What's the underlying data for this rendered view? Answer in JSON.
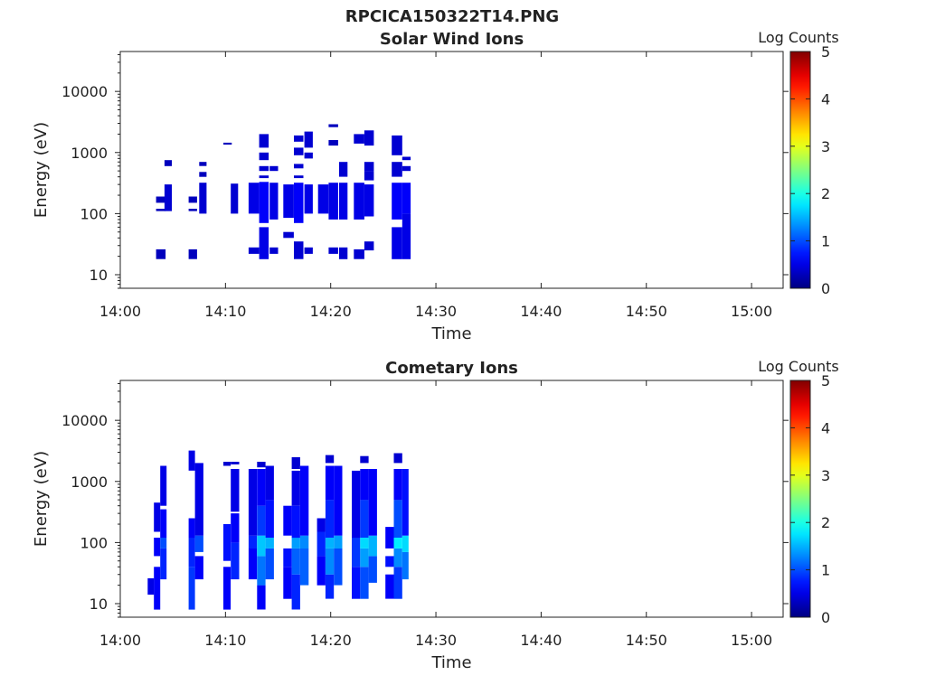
{
  "figure": {
    "main_title": "RPCICA150322T14.PNG"
  },
  "chart_data": [
    {
      "type": "heatmap",
      "title": "Solar Wind Ions",
      "xlabel": "Time",
      "ylabel": "Energy (eV)",
      "x_ticks": [
        "14:00",
        "14:10",
        "14:20",
        "14:30",
        "14:40",
        "14:50",
        "15:00"
      ],
      "x_range_minutes": [
        0,
        63
      ],
      "y_scale": "log",
      "y_range": [
        6,
        45000
      ],
      "y_ticks": [
        {
          "value": 10,
          "label": "10"
        },
        {
          "value": 100,
          "label": "100"
        },
        {
          "value": 1000,
          "label": "1000"
        },
        {
          "value": 10000,
          "label": "10000"
        }
      ],
      "colorbar": {
        "label": "Log Counts",
        "range": [
          0,
          5
        ],
        "ticks": [
          "0",
          "1",
          "2",
          "3",
          "4",
          "5"
        ],
        "colormap": "jet"
      },
      "grid": false,
      "data_columns": [
        {
          "t": 3.4,
          "dt": 0.9,
          "cells": [
            [
              18,
              26,
              0.3
            ],
            [
              150,
              190,
              0.3
            ],
            [
              110,
              120,
              0.3
            ]
          ]
        },
        {
          "t": 4.2,
          "dt": 0.7,
          "cells": [
            [
              110,
              300,
              0.4
            ],
            [
              600,
              750,
              0.3
            ]
          ]
        },
        {
          "t": 6.5,
          "dt": 0.8,
          "cells": [
            [
              18,
              26,
              0.3
            ],
            [
              150,
              190,
              0.3
            ],
            [
              110,
              120,
              0.3
            ]
          ]
        },
        {
          "t": 7.5,
          "dt": 0.7,
          "cells": [
            [
              100,
              320,
              0.4
            ],
            [
              400,
              480,
              0.3
            ],
            [
              600,
              700,
              0.3
            ]
          ]
        },
        {
          "t": 9.8,
          "dt": 0.8,
          "cells": [
            [
              1350,
              1450,
              0.3
            ]
          ]
        },
        {
          "t": 10.5,
          "dt": 0.7,
          "cells": [
            [
              100,
              310,
              0.4
            ]
          ]
        },
        {
          "t": 12.2,
          "dt": 1.0,
          "cells": [
            [
              22,
              28,
              0.4
            ],
            [
              100,
              320,
              0.5
            ]
          ]
        },
        {
          "t": 13.2,
          "dt": 0.9,
          "cells": [
            [
              18,
              60,
              0.5
            ],
            [
              70,
              330,
              0.6
            ],
            [
              380,
              420,
              0.4
            ],
            [
              500,
              600,
              0.4
            ],
            [
              750,
              1000,
              0.4
            ],
            [
              1200,
              2000,
              0.4
            ]
          ]
        },
        {
          "t": 14.2,
          "dt": 0.8,
          "cells": [
            [
              22,
              28,
              0.4
            ],
            [
              80,
              320,
              0.5
            ],
            [
              500,
              600,
              0.4
            ]
          ]
        },
        {
          "t": 15.5,
          "dt": 1.0,
          "cells": [
            [
              40,
              50,
              0.4
            ],
            [
              85,
              300,
              0.5
            ]
          ]
        },
        {
          "t": 16.5,
          "dt": 0.9,
          "cells": [
            [
              18,
              35,
              0.4
            ],
            [
              70,
              320,
              0.6
            ],
            [
              380,
              420,
              0.4
            ],
            [
              550,
              650,
              0.4
            ],
            [
              900,
              1200,
              0.4
            ],
            [
              1500,
              1900,
              0.4
            ]
          ]
        },
        {
          "t": 17.5,
          "dt": 0.8,
          "cells": [
            [
              22,
              28,
              0.4
            ],
            [
              100,
              300,
              0.5
            ],
            [
              800,
              1000,
              0.4
            ],
            [
              1200,
              2200,
              0.4
            ]
          ]
        },
        {
          "t": 18.8,
          "dt": 1.0,
          "cells": [
            [
              100,
              300,
              0.5
            ]
          ]
        },
        {
          "t": 19.8,
          "dt": 0.9,
          "cells": [
            [
              22,
              28,
              0.4
            ],
            [
              80,
              320,
              0.5
            ],
            [
              1300,
              1600,
              0.3
            ],
            [
              2600,
              2900,
              0.3
            ]
          ]
        },
        {
          "t": 20.8,
          "dt": 0.8,
          "cells": [
            [
              18,
              28,
              0.4
            ],
            [
              80,
              320,
              0.5
            ],
            [
              400,
              700,
              0.4
            ]
          ]
        },
        {
          "t": 22.2,
          "dt": 1.0,
          "cells": [
            [
              18,
              26,
              0.4
            ],
            [
              80,
              320,
              0.5
            ],
            [
              1400,
              2000,
              0.4
            ]
          ]
        },
        {
          "t": 23.2,
          "dt": 0.9,
          "cells": [
            [
              25,
              35,
              0.4
            ],
            [
              90,
              300,
              0.5
            ],
            [
              350,
              500,
              0.4
            ],
            [
              500,
              700,
              0.4
            ],
            [
              1300,
              2300,
              0.4
            ]
          ]
        },
        {
          "t": 25.8,
          "dt": 1.0,
          "cells": [
            [
              18,
              60,
              0.5
            ],
            [
              80,
              320,
              0.6
            ],
            [
              400,
              700,
              0.4
            ],
            [
              900,
              1900,
              0.4
            ]
          ]
        },
        {
          "t": 26.8,
          "dt": 0.8,
          "cells": [
            [
              18,
              100,
              0.5
            ],
            [
              100,
              320,
              0.6
            ],
            [
              500,
              600,
              0.4
            ],
            [
              750,
              850,
              0.4
            ]
          ]
        }
      ]
    },
    {
      "type": "heatmap",
      "title": "Cometary Ions",
      "xlabel": "Time",
      "ylabel": "Energy (eV)",
      "x_ticks": [
        "14:00",
        "14:10",
        "14:20",
        "14:30",
        "14:40",
        "14:50",
        "15:00"
      ],
      "x_range_minutes": [
        0,
        63
      ],
      "y_scale": "log",
      "y_range": [
        6,
        45000
      ],
      "y_ticks": [
        {
          "value": 10,
          "label": "10"
        },
        {
          "value": 100,
          "label": "100"
        },
        {
          "value": 1000,
          "label": "1000"
        },
        {
          "value": 10000,
          "label": "10000"
        }
      ],
      "colorbar": {
        "label": "Log Counts",
        "range": [
          0,
          5
        ],
        "ticks": [
          "0",
          "1",
          "2",
          "3",
          "4",
          "5"
        ],
        "colormap": "jet"
      },
      "grid": false,
      "data_columns": [
        {
          "t": 2.6,
          "dt": 0.6,
          "cells": [
            [
              14,
              26,
              0.5
            ]
          ]
        },
        {
          "t": 3.2,
          "dt": 0.6,
          "cells": [
            [
              8,
              40,
              0.6
            ],
            [
              60,
              120,
              0.6
            ],
            [
              150,
              450,
              0.5
            ]
          ]
        },
        {
          "t": 3.8,
          "dt": 0.6,
          "cells": [
            [
              25,
              80,
              0.8
            ],
            [
              80,
              120,
              1.0
            ],
            [
              120,
              350,
              0.6
            ],
            [
              400,
              1800,
              0.5
            ]
          ]
        },
        {
          "t": 6.5,
          "dt": 0.6,
          "cells": [
            [
              8,
              40,
              0.9
            ],
            [
              40,
              120,
              0.8
            ],
            [
              120,
              250,
              0.6
            ],
            [
              1500,
              3200,
              0.5
            ]
          ]
        },
        {
          "t": 7.1,
          "dt": 0.8,
          "cells": [
            [
              25,
              60,
              0.6
            ],
            [
              70,
              130,
              1.0
            ],
            [
              130,
              2000,
              0.5
            ]
          ]
        },
        {
          "t": 9.8,
          "dt": 0.7,
          "cells": [
            [
              8,
              40,
              0.6
            ],
            [
              50,
              200,
              0.7
            ],
            [
              1800,
              2100,
              0.4
            ]
          ]
        },
        {
          "t": 10.5,
          "dt": 0.8,
          "cells": [
            [
              25,
              100,
              0.8
            ],
            [
              100,
              300,
              0.6
            ],
            [
              320,
              1600,
              0.5
            ],
            [
              1900,
              2100,
              0.4
            ]
          ]
        },
        {
          "t": 12.2,
          "dt": 0.8,
          "cells": [
            [
              25,
              80,
              0.6
            ],
            [
              80,
              130,
              0.8
            ],
            [
              130,
              1600,
              0.5
            ]
          ]
        },
        {
          "t": 13.0,
          "dt": 0.8,
          "cells": [
            [
              8,
              20,
              0.6
            ],
            [
              20,
              60,
              1.2
            ],
            [
              60,
              130,
              1.6
            ],
            [
              130,
              400,
              0.9
            ],
            [
              400,
              1600,
              0.6
            ],
            [
              1700,
              2100,
              0.4
            ]
          ]
        },
        {
          "t": 13.8,
          "dt": 0.8,
          "cells": [
            [
              25,
              80,
              1.0
            ],
            [
              80,
              120,
              1.5
            ],
            [
              120,
              500,
              0.7
            ],
            [
              500,
              1800,
              0.5
            ]
          ]
        },
        {
          "t": 15.5,
          "dt": 0.8,
          "cells": [
            [
              12,
              40,
              0.6
            ],
            [
              40,
              80,
              0.7
            ],
            [
              130,
              400,
              0.6
            ]
          ]
        },
        {
          "t": 16.3,
          "dt": 0.8,
          "cells": [
            [
              8,
              30,
              0.8
            ],
            [
              30,
              80,
              1.1
            ],
            [
              80,
              120,
              1.4
            ],
            [
              120,
              400,
              0.7
            ],
            [
              400,
              1500,
              0.5
            ],
            [
              1600,
              2500,
              0.4
            ]
          ]
        },
        {
          "t": 17.1,
          "dt": 0.8,
          "cells": [
            [
              20,
              80,
              1.1
            ],
            [
              80,
              130,
              1.3
            ],
            [
              130,
              1800,
              0.6
            ]
          ]
        },
        {
          "t": 18.7,
          "dt": 0.8,
          "cells": [
            [
              20,
              60,
              0.6
            ],
            [
              60,
              150,
              0.8
            ],
            [
              150,
              250,
              0.5
            ]
          ]
        },
        {
          "t": 19.5,
          "dt": 0.8,
          "cells": [
            [
              12,
              30,
              0.8
            ],
            [
              30,
              80,
              1.3
            ],
            [
              80,
              120,
              1.5
            ],
            [
              120,
              500,
              0.8
            ],
            [
              500,
              1800,
              0.6
            ],
            [
              2000,
              2700,
              0.4
            ]
          ]
        },
        {
          "t": 20.3,
          "dt": 0.8,
          "cells": [
            [
              20,
              80,
              1.0
            ],
            [
              80,
              130,
              1.4
            ],
            [
              130,
              1800,
              0.6
            ]
          ]
        },
        {
          "t": 22.0,
          "dt": 0.8,
          "cells": [
            [
              12,
              40,
              0.7
            ],
            [
              40,
              120,
              0.9
            ],
            [
              120,
              1500,
              0.5
            ]
          ]
        },
        {
          "t": 22.8,
          "dt": 0.8,
          "cells": [
            [
              12,
              40,
              1.0
            ],
            [
              40,
              80,
              1.4
            ],
            [
              80,
              120,
              1.7
            ],
            [
              120,
              500,
              0.9
            ],
            [
              500,
              1600,
              0.6
            ],
            [
              2000,
              2600,
              0.4
            ]
          ]
        },
        {
          "t": 23.6,
          "dt": 0.8,
          "cells": [
            [
              22,
              60,
              1.0
            ],
            [
              60,
              130,
              1.5
            ],
            [
              130,
              1600,
              0.6
            ]
          ]
        },
        {
          "t": 25.2,
          "dt": 0.8,
          "cells": [
            [
              12,
              30,
              0.6
            ],
            [
              40,
              60,
              0.7
            ],
            [
              80,
              180,
              0.6
            ]
          ]
        },
        {
          "t": 26.0,
          "dt": 0.8,
          "cells": [
            [
              12,
              40,
              0.9
            ],
            [
              40,
              80,
              1.3
            ],
            [
              80,
              120,
              1.8
            ],
            [
              120,
              500,
              1.0
            ],
            [
              500,
              1600,
              0.6
            ],
            [
              2000,
              2900,
              0.4
            ]
          ]
        },
        {
          "t": 26.8,
          "dt": 0.6,
          "cells": [
            [
              25,
              70,
              1.2
            ],
            [
              70,
              130,
              1.7
            ],
            [
              130,
              1600,
              0.7
            ]
          ]
        }
      ]
    }
  ]
}
